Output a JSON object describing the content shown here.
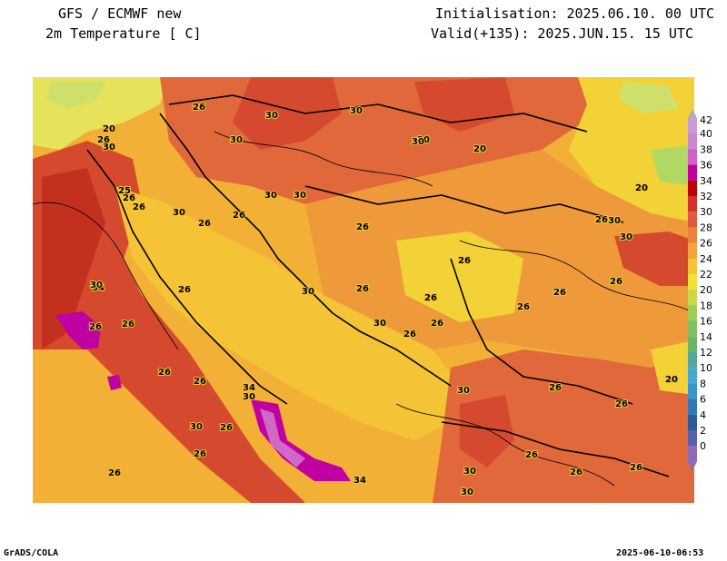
{
  "header": {
    "model": "GFS / ECMWF new",
    "variable": "2m Temperature [ C]",
    "init": "Initialisation: 2025.06.10. 00 UTC",
    "valid": "Valid(+135): 2025.JUN.15. 15 UTC"
  },
  "footer": {
    "credit": "GrADS/COLA",
    "timestamp": "2025-06-10-06:53"
  },
  "colors": {
    "t20": "#e0e25a",
    "t22": "#f2e030",
    "t24": "#f5c336",
    "t26": "#f2a437",
    "t28": "#e8813a",
    "t30": "#e06a35",
    "t32": "#d64a2c",
    "t34": "#c4301e",
    "t36": "#c00090",
    "t38": "#d060c8",
    "sea": "#f2b036"
  },
  "legend": {
    "labels": [
      "42",
      "40",
      "38",
      "36",
      "34",
      "32",
      "30",
      "28",
      "26",
      "24",
      "22",
      "20",
      "18",
      "16",
      "14",
      "12",
      "10",
      "8",
      "6",
      "4",
      "2",
      "0"
    ],
    "colors": [
      "#c89cd4",
      "#c78ad0",
      "#d060c8",
      "#c0009c",
      "#c00000",
      "#d4322a",
      "#e2583a",
      "#e9823d",
      "#f3a43c",
      "#f5c437",
      "#f2e13a",
      "#c8d84a",
      "#a0cc58",
      "#80c060",
      "#6cb468",
      "#54a8a0",
      "#4aa8d0",
      "#3c94c8",
      "#3278b4",
      "#2a5c98",
      "#5a60a8",
      "#8a6cb8"
    ]
  },
  "contour_labels": [
    {
      "text": "26"
    },
    {
      "text": "30"
    },
    {
      "text": "20"
    },
    {
      "text": "26"
    },
    {
      "text": "30"
    },
    {
      "text": "30"
    },
    {
      "text": "30"
    },
    {
      "text": "30"
    },
    {
      "text": "20"
    },
    {
      "text": "25"
    },
    {
      "text": "26"
    },
    {
      "text": "26"
    },
    {
      "text": "30"
    },
    {
      "text": "26"
    },
    {
      "text": "30"
    },
    {
      "text": "26"
    },
    {
      "text": "20"
    },
    {
      "text": "26"
    },
    {
      "text": "30"
    },
    {
      "text": "26"
    },
    {
      "text": "26"
    },
    {
      "text": "26"
    },
    {
      "text": "30"
    },
    {
      "text": "26"
    },
    {
      "text": "34"
    },
    {
      "text": "26"
    },
    {
      "text": "26"
    },
    {
      "text": "26"
    },
    {
      "text": "30"
    },
    {
      "text": "26"
    },
    {
      "text": "26"
    },
    {
      "text": "26"
    },
    {
      "text": "26"
    },
    {
      "text": "30"
    },
    {
      "text": "34"
    },
    {
      "text": "20"
    },
    {
      "text": "26"
    },
    {
      "text": "30"
    },
    {
      "text": "30"
    },
    {
      "text": "26"
    },
    {
      "text": "26"
    },
    {
      "text": "26"
    },
    {
      "text": "26"
    },
    {
      "text": "30"
    },
    {
      "text": "34"
    },
    {
      "text": "26"
    },
    {
      "text": "26"
    },
    {
      "text": "30"
    },
    {
      "text": "26"
    },
    {
      "text": "26"
    },
    {
      "text": "26"
    },
    {
      "text": "26"
    },
    {
      "text": "30"
    },
    {
      "text": "30"
    },
    {
      "text": "30"
    },
    {
      "text": "26"
    },
    {
      "text": "30"
    }
  ]
}
